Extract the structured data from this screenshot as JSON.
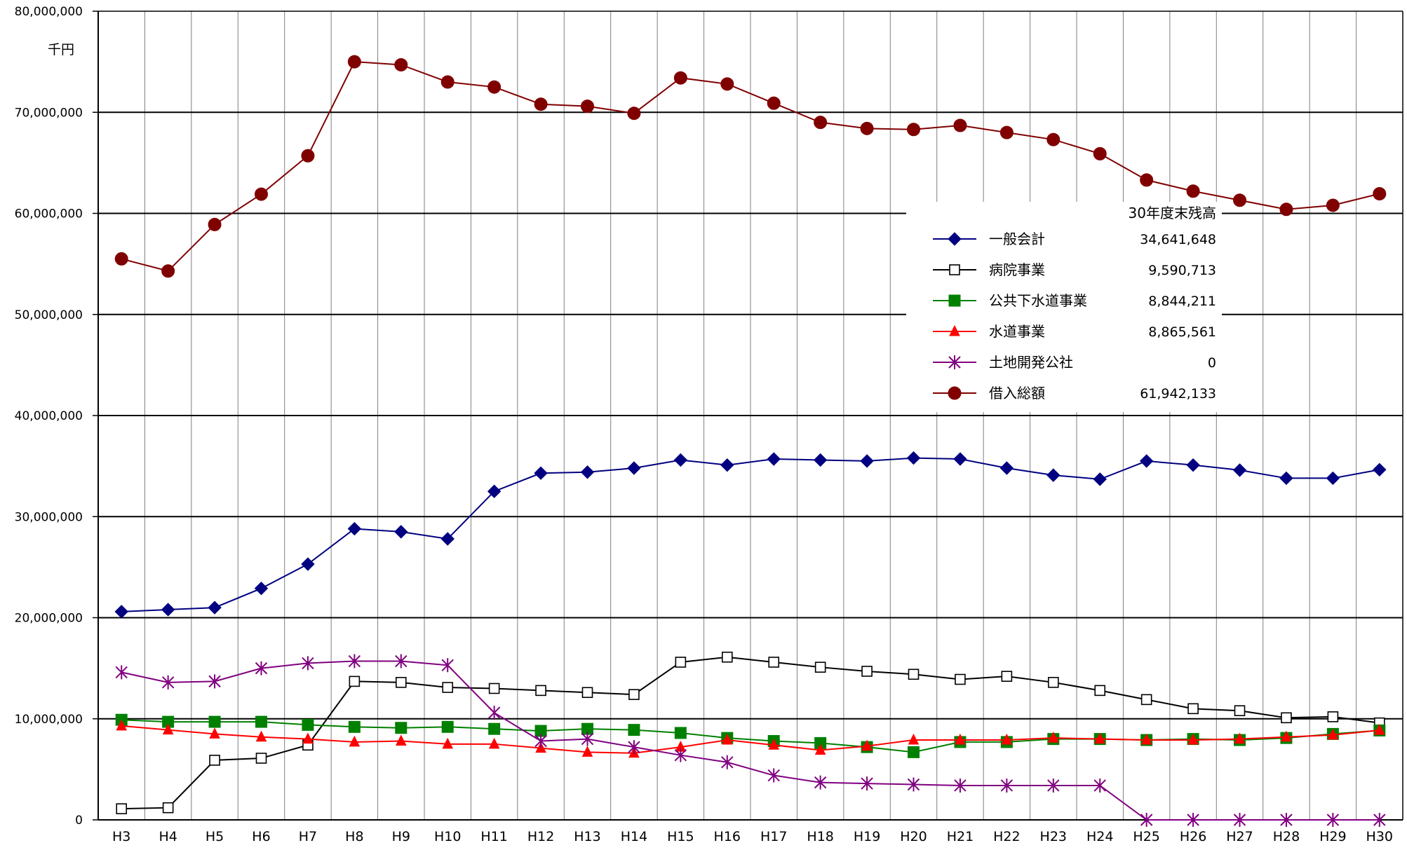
{
  "chart_data": {
    "type": "line",
    "unit_label": "千円",
    "categories": [
      "H3",
      "H4",
      "H5",
      "H6",
      "H7",
      "H8",
      "H9",
      "H10",
      "H11",
      "H12",
      "H13",
      "H14",
      "H15",
      "H16",
      "H17",
      "H18",
      "H19",
      "H20",
      "H21",
      "H22",
      "H23",
      "H24",
      "H25",
      "H26",
      "H27",
      "H28",
      "H29",
      "H30"
    ],
    "y_ticks": [
      "0",
      "10,000,000",
      "20,000,000",
      "30,000,000",
      "40,000,000",
      "50,000,000",
      "60,000,000",
      "70,000,000",
      "80,000,000"
    ],
    "ylim": [
      0,
      80000000
    ],
    "grid": true,
    "legend": {
      "placement": "upper-right",
      "header": "30年度末残高"
    },
    "series": [
      {
        "name": "一般会計",
        "end_value_label": "34,641,648",
        "color": "#000080",
        "marker": "diamond",
        "values": [
          20600000,
          20800000,
          21000000,
          22900000,
          25300000,
          28800000,
          28500000,
          27800000,
          32500000,
          34300000,
          34400000,
          34800000,
          35600000,
          35100000,
          35700000,
          35600000,
          35500000,
          35800000,
          35700000,
          34800000,
          34100000,
          33700000,
          35500000,
          35100000,
          34600000,
          33800000,
          33800000,
          34641648
        ]
      },
      {
        "name": "病院事業",
        "end_value_label": "9,590,713",
        "color": "#000000",
        "marker": "square-open",
        "values": [
          1100000,
          1200000,
          5900000,
          6100000,
          7400000,
          13700000,
          13600000,
          13100000,
          13000000,
          12800000,
          12600000,
          12400000,
          15600000,
          16100000,
          15600000,
          15100000,
          14700000,
          14400000,
          13900000,
          14200000,
          13600000,
          12800000,
          11900000,
          11000000,
          10800000,
          10100000,
          10200000,
          9590713
        ]
      },
      {
        "name": "公共下水道事業",
        "end_value_label": "8,844,211",
        "color": "#008000",
        "marker": "square",
        "values": [
          9900000,
          9700000,
          9700000,
          9700000,
          9400000,
          9200000,
          9100000,
          9200000,
          9000000,
          8800000,
          9000000,
          8900000,
          8600000,
          8100000,
          7800000,
          7600000,
          7200000,
          6700000,
          7700000,
          7700000,
          8000000,
          8000000,
          7900000,
          8000000,
          7900000,
          8100000,
          8500000,
          8844211
        ]
      },
      {
        "name": "水道事業",
        "end_value_label": "8,865,561",
        "color": "#ff0000",
        "marker": "triangle",
        "values": [
          9300000,
          8900000,
          8500000,
          8200000,
          8000000,
          7700000,
          7800000,
          7500000,
          7500000,
          7100000,
          6700000,
          6600000,
          7200000,
          7900000,
          7400000,
          6900000,
          7300000,
          7900000,
          7900000,
          7900000,
          8100000,
          8000000,
          7900000,
          7900000,
          8000000,
          8200000,
          8400000,
          8865561
        ]
      },
      {
        "name": "土地開発公社",
        "end_value_label": "0",
        "color": "#800080",
        "marker": "asterisk",
        "values": [
          14600000,
          13600000,
          13700000,
          15000000,
          15500000,
          15700000,
          15700000,
          15300000,
          10600000,
          7800000,
          8000000,
          7200000,
          6400000,
          5700000,
          4400000,
          3700000,
          3600000,
          3500000,
          3400000,
          3400000,
          3400000,
          3400000,
          0,
          0,
          0,
          0,
          0,
          0
        ]
      },
      {
        "name": "借入総額",
        "end_value_label": "61,942,133",
        "color": "#800000",
        "marker": "circle",
        "values": [
          55500000,
          54300000,
          58900000,
          61900000,
          65700000,
          75000000,
          74700000,
          73000000,
          72500000,
          70800000,
          70600000,
          69900000,
          73400000,
          72800000,
          70900000,
          69000000,
          68400000,
          68300000,
          68700000,
          68000000,
          67300000,
          65900000,
          63300000,
          62200000,
          61300000,
          60400000,
          60800000,
          61942133
        ]
      }
    ]
  }
}
